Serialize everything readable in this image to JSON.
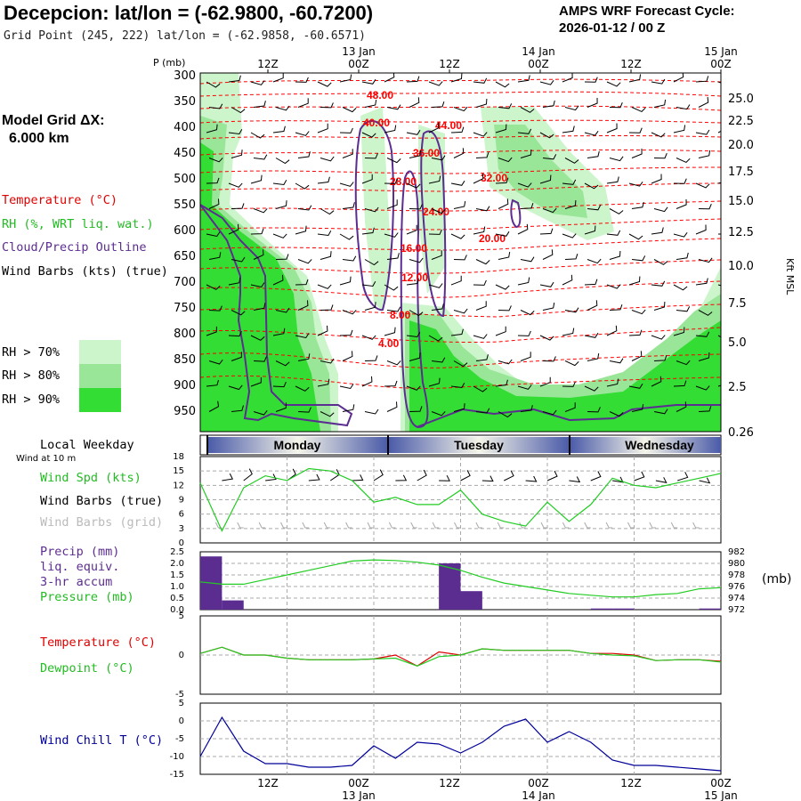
{
  "header": {
    "title": "Decepcion:  lat/lon = (-62.9800, -60.7200)",
    "subtitle": "Grid Point (245, 222) lat/lon = (-62.9858, -60.6571)",
    "cycle_line1": "AMPS WRF Forecast Cycle:",
    "cycle_line2": "2026-01-12 / 00  Z"
  },
  "model_grid": {
    "line1": "Model Grid ΔX:",
    "line2": "6.000 km"
  },
  "legend": {
    "temperature": "Temperature (°C)",
    "rh": "RH (%, WRT liq. wat.)",
    "cloud": "Cloud/Precip Outline",
    "wind": "Wind Barbs (kts) (true)",
    "rh70": "RH > 70%",
    "rh80": "RH > 80%",
    "rh90": "RH > 90%"
  },
  "colors": {
    "temperature": "#ff0000",
    "rh70": "#ccf5cc",
    "rh80": "#99e699",
    "rh90": "#33dd33",
    "cloud": "#5c2d91",
    "wind_line": "#22cc22",
    "precip": "#5c2d91",
    "windchill": "#000099",
    "weekday_band": "#4a5aa8"
  },
  "time_axis": {
    "top_date_labels": [
      "13 Jan",
      "14 Jan",
      "15 Jan"
    ],
    "hour_labels": [
      "12Z",
      "00Z",
      "12Z",
      "00Z",
      "12Z",
      "00Z"
    ],
    "bottom_date_labels": [
      "13 Jan",
      "14 Jan",
      "15 Jan"
    ]
  },
  "upper_panel": {
    "p_unit": "P (mb)",
    "pressure_ticks": [
      "300",
      "350",
      "400",
      "450",
      "500",
      "550",
      "600",
      "650",
      "700",
      "750",
      "800",
      "850",
      "900",
      "950"
    ],
    "kft_ticks": [
      "25.0",
      "22.5",
      "20.0",
      "17.5",
      "15.0",
      "12.5",
      "10.0",
      "7.5",
      "5.0",
      "2.5",
      "0.26"
    ],
    "kft_label": "Kft MSL",
    "temp_labels": [
      "48.00",
      "40.00",
      "44.00",
      "36.00",
      "28.00",
      "32.00",
      "24.00",
      "20.00",
      "16.00",
      "12.00",
      "8.00",
      "4.00"
    ]
  },
  "weekday": {
    "label": "Local Weekday",
    "wind_note": "Wind at 10 m",
    "days": [
      "Monday",
      "Tuesday",
      "Wednesday"
    ]
  },
  "wind_panel": {
    "label1": "Wind Spd (kts)",
    "label2": "Wind Barbs (true)",
    "label3": "Wind Barbs (grid)",
    "yticks": [
      "18",
      "15",
      "12",
      "9",
      "6",
      "3",
      "0"
    ]
  },
  "precip_panel": {
    "label1": "Precip (mm)",
    "label2": "liq. equiv.",
    "label3": "3-hr accum",
    "label4": "Pressure (mb)",
    "unit_right": "(mb)",
    "left_ticks": [
      "2.5",
      "2.0",
      "1.5",
      "1.0",
      "0.5",
      "0.0"
    ],
    "right_ticks": [
      "982",
      "980",
      "978",
      "976",
      "974",
      "972"
    ]
  },
  "temp_panel": {
    "label1": "Temperature (°C)",
    "label2": "Dewpoint (°C)",
    "yticks": [
      "5",
      "0",
      "-5"
    ]
  },
  "chill_panel": {
    "label": "Wind Chill T (°C)",
    "yticks": [
      "5",
      "0",
      "-5",
      "-10",
      "-15"
    ]
  },
  "chart_data": [
    {
      "type": "line",
      "title": "Wind Spd (kts)",
      "x_hours": [
        0,
        3,
        6,
        9,
        12,
        15,
        18,
        21,
        24,
        27,
        30,
        33,
        36,
        39,
        42,
        45,
        48,
        51,
        54,
        57,
        60,
        63,
        66,
        69,
        72
      ],
      "ylim": [
        0,
        18
      ],
      "series": [
        {
          "name": "Wind Spd (kts)",
          "values": [
            12.5,
            2.5,
            11.5,
            14,
            13,
            15.5,
            15,
            13,
            8.5,
            9.5,
            8,
            8,
            11,
            6,
            4.5,
            3.5,
            8.5,
            4.5,
            8,
            13.5,
            12,
            11.5,
            12.5,
            13.5,
            14.5
          ]
        }
      ]
    },
    {
      "type": "bar",
      "title": "Precip (mm) liq. equiv. 3-hr accum",
      "x_hours": [
        0,
        3,
        6,
        9,
        12,
        15,
        18,
        21,
        24,
        27,
        30,
        33,
        36,
        39,
        42,
        45,
        48,
        51,
        54,
        57,
        60,
        63,
        66,
        69
      ],
      "ylim": [
        0,
        2.5
      ],
      "values": [
        2.3,
        0.4,
        0,
        0,
        0,
        0,
        0,
        0,
        0,
        0,
        0,
        2.0,
        0.8,
        0,
        0,
        0,
        0,
        0,
        0.05,
        0.05,
        0,
        0,
        0,
        0.05
      ]
    },
    {
      "type": "line",
      "title": "Pressure (mb)",
      "x_hours": [
        0,
        3,
        6,
        9,
        12,
        15,
        18,
        21,
        24,
        27,
        30,
        33,
        36,
        39,
        42,
        45,
        48,
        51,
        54,
        57,
        60,
        63,
        66,
        69,
        72
      ],
      "ylim": [
        972,
        982
      ],
      "series": [
        {
          "name": "Pressure (mb)",
          "values": [
            976.8,
            976.4,
            976.4,
            977.2,
            978,
            978.8,
            979.6,
            980.4,
            980.6,
            980.5,
            980.2,
            979.7,
            978.8,
            977.6,
            976.6,
            976,
            975.4,
            974.8,
            974.5,
            974.2,
            974.2,
            974.6,
            974.8,
            975.6,
            975.8
          ]
        }
      ]
    },
    {
      "type": "line",
      "title": "Temperature / Dewpoint (°C)",
      "x_hours": [
        0,
        3,
        6,
        9,
        12,
        15,
        18,
        21,
        24,
        27,
        30,
        33,
        36,
        39,
        42,
        45,
        48,
        51,
        54,
        57,
        60,
        63,
        66,
        69,
        72
      ],
      "ylim": [
        -5,
        5
      ],
      "series": [
        {
          "name": "Temperature (°C)",
          "values": [
            0.2,
            1.0,
            0,
            0,
            -0.4,
            -0.6,
            -0.6,
            -0.6,
            -0.5,
            0,
            -1.4,
            0.4,
            0,
            0.8,
            0.6,
            0.6,
            0.6,
            0.6,
            0.2,
            0.2,
            0,
            -0.7,
            -0.6,
            -0.6,
            -0.8
          ]
        },
        {
          "name": "Dewpoint (°C)",
          "values": [
            0.2,
            1.0,
            0,
            0,
            -0.4,
            -0.6,
            -0.6,
            -0.6,
            -0.5,
            -0.4,
            -1.4,
            -0.2,
            0,
            0.8,
            0.6,
            0.6,
            0.6,
            0.6,
            0.2,
            0,
            -0.1,
            -0.7,
            -0.6,
            -0.6,
            -0.9
          ]
        }
      ]
    },
    {
      "type": "line",
      "title": "Wind Chill T (°C)",
      "x_hours": [
        0,
        3,
        6,
        9,
        12,
        15,
        18,
        21,
        24,
        27,
        30,
        33,
        36,
        39,
        42,
        45,
        48,
        51,
        54,
        57,
        60,
        63,
        66,
        69,
        72
      ],
      "ylim": [
        -15,
        5
      ],
      "series": [
        {
          "name": "Wind Chill T (°C)",
          "values": [
            -10,
            1,
            -8.5,
            -12,
            -12,
            -13,
            -13,
            -12.5,
            -7,
            -10.5,
            -6,
            -6.5,
            -9,
            -6,
            -1.5,
            0.5,
            -6,
            -3,
            -6,
            -11,
            -12.5,
            -12.5,
            -13,
            -13.5,
            -14
          ]
        }
      ]
    }
  ]
}
